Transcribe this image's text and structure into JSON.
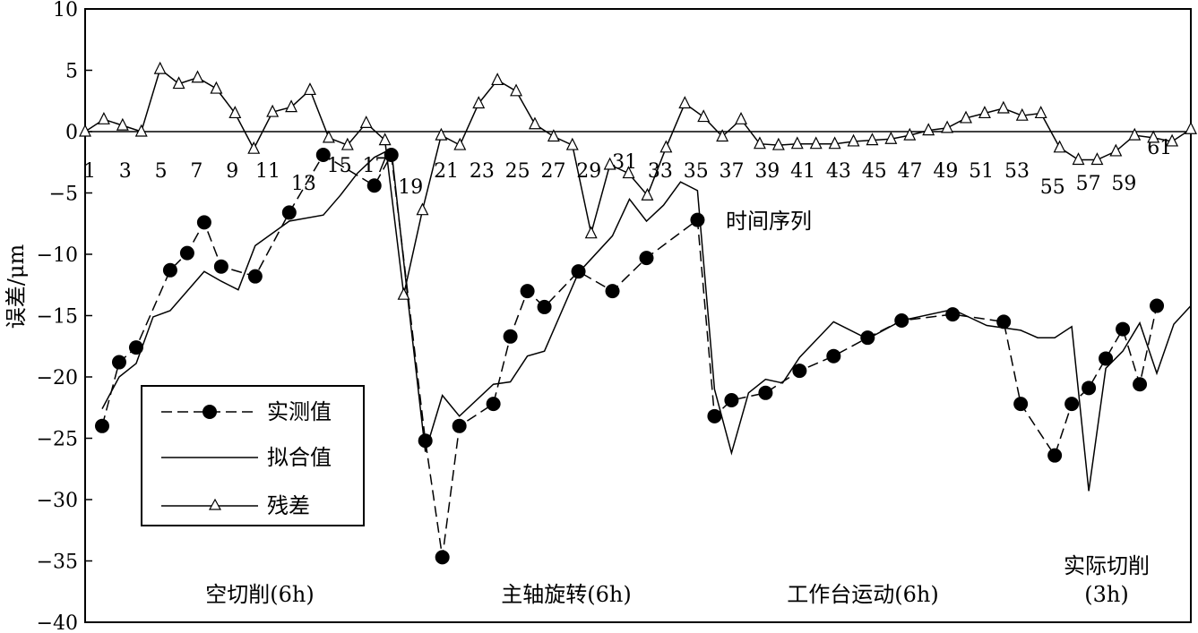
{
  "chart_data": {
    "type": "line",
    "ylabel": "误差/μm",
    "xlabel": "时间序列",
    "ylim": [
      -40,
      10
    ],
    "xlim": [
      0,
      62
    ],
    "yticks": [
      10,
      5,
      0,
      -5,
      -10,
      -15,
      -20,
      -25,
      -30,
      -35,
      -40
    ],
    "xtick_labels": [
      "1",
      "3",
      "5",
      "7",
      "9",
      "11",
      "13",
      "15",
      "17",
      "19",
      "21",
      "23",
      "25",
      "27",
      "29",
      "31",
      "33",
      "35",
      "37",
      "39",
      "41",
      "43",
      "45",
      "47",
      "49",
      "51",
      "53",
      "55",
      "57",
      "59",
      "61"
    ],
    "legend": {
      "position": "lower-left",
      "entries": [
        "实测值",
        "拟合值",
        "残差"
      ]
    },
    "regions": [
      {
        "label": "空切削(6h)"
      },
      {
        "label": "主轴旋转(6h)"
      },
      {
        "label": "工作台运动(6h)"
      },
      {
        "label": "实际切削",
        "sublabel": "(3h)"
      }
    ],
    "series": [
      {
        "name": "实测值",
        "style": "dashed-marker-circle",
        "points": [
          [
            1,
            -24.0
          ],
          [
            2,
            -18.8
          ],
          [
            3,
            -17.6
          ],
          [
            5,
            -11.3
          ],
          [
            6,
            -9.9
          ],
          [
            7,
            -7.4
          ],
          [
            8,
            -11.0
          ],
          [
            10,
            -11.8
          ],
          [
            12,
            -6.6
          ],
          [
            14,
            -1.9
          ],
          [
            17,
            -4.4
          ],
          [
            18,
            -1.9
          ],
          [
            20,
            -25.2
          ],
          [
            21,
            -34.7
          ],
          [
            22,
            -24.0
          ],
          [
            24,
            -22.2
          ],
          [
            25,
            -16.7
          ],
          [
            26,
            -13.0
          ],
          [
            27,
            -14.3
          ],
          [
            29,
            -11.4
          ],
          [
            31,
            -13.0
          ],
          [
            33,
            -10.3
          ],
          [
            36,
            -7.2
          ],
          [
            37,
            -23.2
          ],
          [
            38,
            -21.9
          ],
          [
            40,
            -21.3
          ],
          [
            42,
            -19.5
          ],
          [
            44,
            -18.3
          ],
          [
            46,
            -16.8
          ],
          [
            48,
            -15.4
          ],
          [
            51,
            -14.9
          ],
          [
            54,
            -15.5
          ],
          [
            55,
            -22.2
          ],
          [
            57,
            -26.4
          ],
          [
            58,
            -22.2
          ],
          [
            59,
            -20.9
          ],
          [
            60,
            -18.5
          ],
          [
            61,
            -16.1
          ],
          [
            62,
            -20.6
          ],
          [
            63,
            -14.2
          ]
        ]
      },
      {
        "name": "拟合值",
        "style": "solid",
        "points": [
          [
            1,
            -22.6
          ],
          [
            2,
            -20.0
          ],
          [
            3,
            -18.9
          ],
          [
            4,
            -15.1
          ],
          [
            5,
            -14.6
          ],
          [
            7,
            -11.4
          ],
          [
            8,
            -12.2
          ],
          [
            9,
            -12.9
          ],
          [
            10,
            -9.3
          ],
          [
            12,
            -7.3
          ],
          [
            14,
            -6.8
          ],
          [
            15,
            -5.2
          ],
          [
            16,
            -3.4
          ],
          [
            17,
            -2.1
          ],
          [
            18,
            -1.4
          ],
          [
            19,
            -14.0
          ],
          [
            20,
            -26.1
          ],
          [
            21,
            -21.5
          ],
          [
            22,
            -23.2
          ],
          [
            24,
            -20.6
          ],
          [
            25,
            -20.4
          ],
          [
            26,
            -18.3
          ],
          [
            27,
            -17.9
          ],
          [
            29,
            -11.5
          ],
          [
            31,
            -8.5
          ],
          [
            32,
            -5.5
          ],
          [
            33,
            -7.3
          ],
          [
            34,
            -6.0
          ],
          [
            35,
            -4.1
          ],
          [
            36,
            -4.8
          ],
          [
            37,
            -21.0
          ],
          [
            38,
            -26.2
          ],
          [
            39,
            -21.3
          ],
          [
            40,
            -20.2
          ],
          [
            41,
            -20.5
          ],
          [
            42,
            -18.4
          ],
          [
            44,
            -15.5
          ],
          [
            46,
            -16.9
          ],
          [
            48,
            -15.4
          ],
          [
            51,
            -14.5
          ],
          [
            53,
            -15.8
          ],
          [
            55,
            -16.2
          ],
          [
            56,
            -16.8
          ],
          [
            57,
            -16.8
          ],
          [
            58,
            -15.9
          ],
          [
            59,
            -29.3
          ],
          [
            60,
            -19.3
          ],
          [
            61,
            -17.9
          ],
          [
            62,
            -15.6
          ],
          [
            63,
            -19.7
          ],
          [
            64,
            -15.7
          ],
          [
            65,
            -14.2
          ]
        ]
      },
      {
        "name": "残差",
        "style": "solid-marker-triangle",
        "points": [
          [
            0,
            0.0
          ],
          [
            1,
            1.0
          ],
          [
            2,
            0.5
          ],
          [
            3,
            0.0
          ],
          [
            4,
            5.1
          ],
          [
            5,
            3.9
          ],
          [
            6,
            4.4
          ],
          [
            7,
            3.5
          ],
          [
            8,
            1.5
          ],
          [
            9,
            -1.4
          ],
          [
            10,
            1.6
          ],
          [
            11,
            2.0
          ],
          [
            12,
            3.4
          ],
          [
            13,
            -0.5
          ],
          [
            14,
            -1.1
          ],
          [
            15,
            0.7
          ],
          [
            16,
            -0.7
          ],
          [
            17,
            -13.3
          ],
          [
            18,
            -6.4
          ],
          [
            19,
            -0.3
          ],
          [
            20,
            -1.1
          ],
          [
            21,
            2.3
          ],
          [
            22,
            4.2
          ],
          [
            23,
            3.3
          ],
          [
            24,
            0.6
          ],
          [
            25,
            -0.4
          ],
          [
            26,
            -1.1
          ],
          [
            27,
            -8.3
          ],
          [
            28,
            -2.7
          ],
          [
            29,
            -3.4
          ],
          [
            30,
            -5.2
          ],
          [
            31,
            -1.3
          ],
          [
            32,
            2.3
          ],
          [
            33,
            1.2
          ],
          [
            34,
            -0.4
          ],
          [
            35,
            1.0
          ],
          [
            36,
            -1.0
          ],
          [
            37,
            -1.1
          ],
          [
            38,
            -1.0
          ],
          [
            39,
            -1.0
          ],
          [
            40,
            -1.0
          ],
          [
            41,
            -0.8
          ],
          [
            42,
            -0.7
          ],
          [
            43,
            -0.6
          ],
          [
            44,
            -0.3
          ],
          [
            45,
            0.1
          ],
          [
            46,
            0.3
          ],
          [
            47,
            1.1
          ],
          [
            48,
            1.5
          ],
          [
            49,
            1.9
          ],
          [
            50,
            1.3
          ],
          [
            51,
            1.5
          ],
          [
            52,
            -1.3
          ],
          [
            53,
            -2.3
          ],
          [
            54,
            -2.3
          ],
          [
            55,
            -1.6
          ],
          [
            56,
            -0.3
          ],
          [
            57,
            -0.5
          ],
          [
            58,
            -0.8
          ],
          [
            59,
            0.2
          ]
        ]
      }
    ]
  }
}
